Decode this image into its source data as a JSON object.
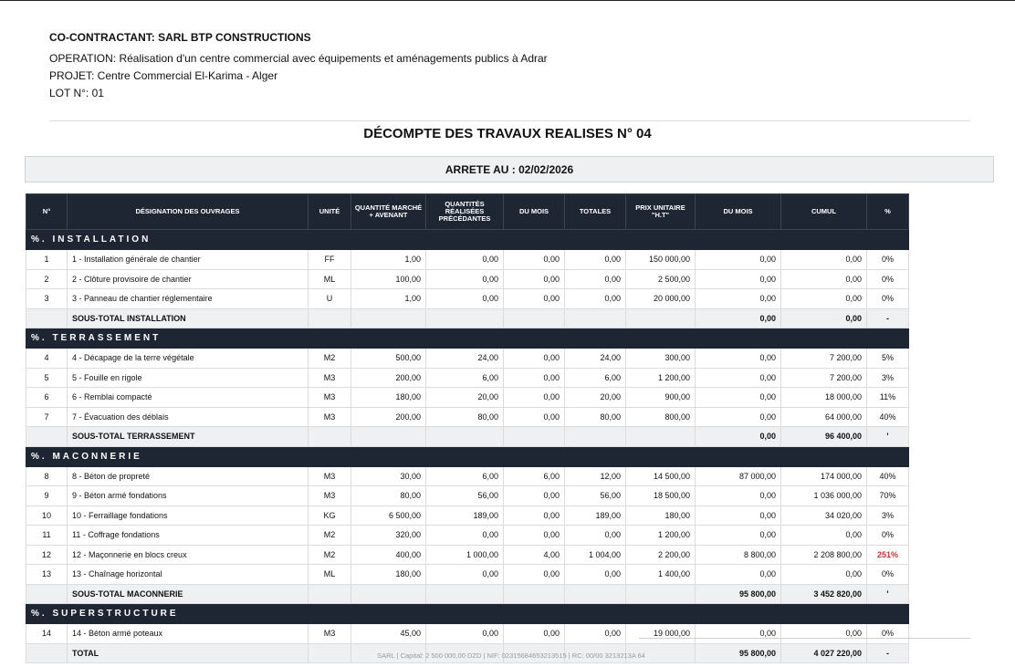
{
  "header": {
    "contractor": "CO-CONTRACTANT: SARL BTP CONSTRUCTIONS",
    "operation": "OPERATION: Réalisation d'un centre commercial avec équipements et aménagements publics à Adrar",
    "projet": "PROJET: Centre Commercial El-Karima - Alger",
    "lot": "LOT N°: 01"
  },
  "title": "DÉCOMPTE DES TRAVAUX REALISES N° 04",
  "arrete": "ARRETE AU : 02/02/2026",
  "table": {
    "columns": [
      "N°",
      "DÉSIGNATION DES OUVRAGES",
      "UNITÉ",
      "QUANTITÉ MARCHÉ + AVENANT",
      "QUANTITÉS RÉALISÉES PRÉCÉDANTES",
      "DU MOIS",
      "TOTALES",
      "PRIX UNITAIRE \"H.T\"",
      "DU MOIS",
      "CUMUL",
      "%"
    ],
    "sections": [
      {
        "title": "%. INSTALLATION",
        "rows": [
          {
            "n": "1",
            "designation": "1 - Installation générale de chantier",
            "unite": "FF",
            "qte_marche": "1,00",
            "qte_prec": "0,00",
            "qte_mois": "0,00",
            "qte_tot": "0,00",
            "pu": "150 000,00",
            "mt_mois": "0,00",
            "cumul": "0,00",
            "pct": "0%"
          },
          {
            "n": "2",
            "designation": "2 - Clôture provisoire de chantier",
            "unite": "ML",
            "qte_marche": "100,00",
            "qte_prec": "0,00",
            "qte_mois": "0,00",
            "qte_tot": "0,00",
            "pu": "2 500,00",
            "mt_mois": "0,00",
            "cumul": "0,00",
            "pct": "0%"
          },
          {
            "n": "3",
            "designation": "3 - Panneau de chantier réglementaire",
            "unite": "U",
            "qte_marche": "1,00",
            "qte_prec": "0,00",
            "qte_mois": "0,00",
            "qte_tot": "0,00",
            "pu": "20 000,00",
            "mt_mois": "0,00",
            "cumul": "0,00",
            "pct": "0%"
          }
        ],
        "subtotal": {
          "label": "SOUS-TOTAL INSTALLATION",
          "mois": "0,00",
          "cumul": "0,00",
          "pct": "-"
        }
      },
      {
        "title": "%. TERRASSEMENT",
        "rows": [
          {
            "n": "4",
            "designation": "4 - Décapage de la terre végétale",
            "unite": "M2",
            "qte_marche": "500,00",
            "qte_prec": "24,00",
            "qte_mois": "0,00",
            "qte_tot": "24,00",
            "pu": "300,00",
            "mt_mois": "0,00",
            "cumul": "7 200,00",
            "pct": "5%"
          },
          {
            "n": "5",
            "designation": "5 - Fouille en rigole",
            "unite": "M3",
            "qte_marche": "200,00",
            "qte_prec": "6,00",
            "qte_mois": "0,00",
            "qte_tot": "6,00",
            "pu": "1 200,00",
            "mt_mois": "0,00",
            "cumul": "7 200,00",
            "pct": "3%"
          },
          {
            "n": "6",
            "designation": "6 - Remblai compacté",
            "unite": "M3",
            "qte_marche": "180,00",
            "qte_prec": "20,00",
            "qte_mois": "0,00",
            "qte_tot": "20,00",
            "pu": "900,00",
            "mt_mois": "0,00",
            "cumul": "18 000,00",
            "pct": "11%"
          },
          {
            "n": "7",
            "designation": "7 - Évacuation des déblais",
            "unite": "M3",
            "qte_marche": "200,00",
            "qte_prec": "80,00",
            "qte_mois": "0,00",
            "qte_tot": "80,00",
            "pu": "800,00",
            "mt_mois": "0,00",
            "cumul": "64 000,00",
            "pct": "40%"
          }
        ],
        "subtotal": {
          "label": "SOUS-TOTAL TERRASSEMENT",
          "mois": "0,00",
          "cumul": "96 400,00",
          "pct": "'"
        }
      },
      {
        "title": "%. MACONNERIE",
        "rows": [
          {
            "n": "8",
            "designation": "8 - Béton de propreté",
            "unite": "M3",
            "qte_marche": "30,00",
            "qte_prec": "6,00",
            "qte_mois": "6,00",
            "qte_tot": "12,00",
            "pu": "14 500,00",
            "mt_mois": "87 000,00",
            "cumul": "174 000,00",
            "pct": "40%"
          },
          {
            "n": "9",
            "designation": "9 - Béton armé fondations",
            "unite": "M3",
            "qte_marche": "80,00",
            "qte_prec": "56,00",
            "qte_mois": "0,00",
            "qte_tot": "56,00",
            "pu": "18 500,00",
            "mt_mois": "0,00",
            "cumul": "1 036 000,00",
            "pct": "70%"
          },
          {
            "n": "10",
            "designation": "10 - Ferraillage fondations",
            "unite": "KG",
            "qte_marche": "6 500,00",
            "qte_prec": "189,00",
            "qte_mois": "0,00",
            "qte_tot": "189,00",
            "pu": "180,00",
            "mt_mois": "0,00",
            "cumul": "34 020,00",
            "pct": "3%"
          },
          {
            "n": "11",
            "designation": "11 - Coffrage fondations",
            "unite": "M2",
            "qte_marche": "320,00",
            "qte_prec": "0,00",
            "qte_mois": "0,00",
            "qte_tot": "0,00",
            "pu": "1 200,00",
            "mt_mois": "0,00",
            "cumul": "0,00",
            "pct": "0%"
          },
          {
            "n": "12",
            "designation": "12 - Maçonnerie en blocs creux",
            "unite": "M2",
            "qte_marche": "400,00",
            "qte_prec": "1 000,00",
            "qte_mois": "4,00",
            "qte_tot": "1 004,00",
            "pu": "2 200,00",
            "mt_mois": "8 800,00",
            "cumul": "2 208 800,00",
            "pct": "251%",
            "over": true
          },
          {
            "n": "13",
            "designation": "13 - Chaînage horizontal",
            "unite": "ML",
            "qte_marche": "180,00",
            "qte_prec": "0,00",
            "qte_mois": "0,00",
            "qte_tot": "0,00",
            "pu": "1 400,00",
            "mt_mois": "0,00",
            "cumul": "0,00",
            "pct": "0%"
          }
        ],
        "subtotal": {
          "label": "SOUS-TOTAL MACONNERIE",
          "mois": "95 800,00",
          "cumul": "3 452 820,00",
          "pct": "'"
        }
      },
      {
        "title": "%. SUPERSTRUCTURE",
        "rows": [
          {
            "n": "14",
            "designation": "14 - Béton armé poteaux",
            "unite": "M3",
            "qte_marche": "45,00",
            "qte_prec": "0,00",
            "qte_mois": "0,00",
            "qte_tot": "0,00",
            "pu": "19 000,00",
            "mt_mois": "0,00",
            "cumul": "0,00",
            "pct": "0%"
          }
        ]
      }
    ],
    "total": {
      "label": "TOTAL",
      "mois": "95 800,00",
      "cumul": "4 027 220,00",
      "pct": "-"
    }
  },
  "footer": "SARL | Capital: 2 500 000,00 DZD | NIF: 02315684653213515 | RC: 00/00 3213213A 64"
}
